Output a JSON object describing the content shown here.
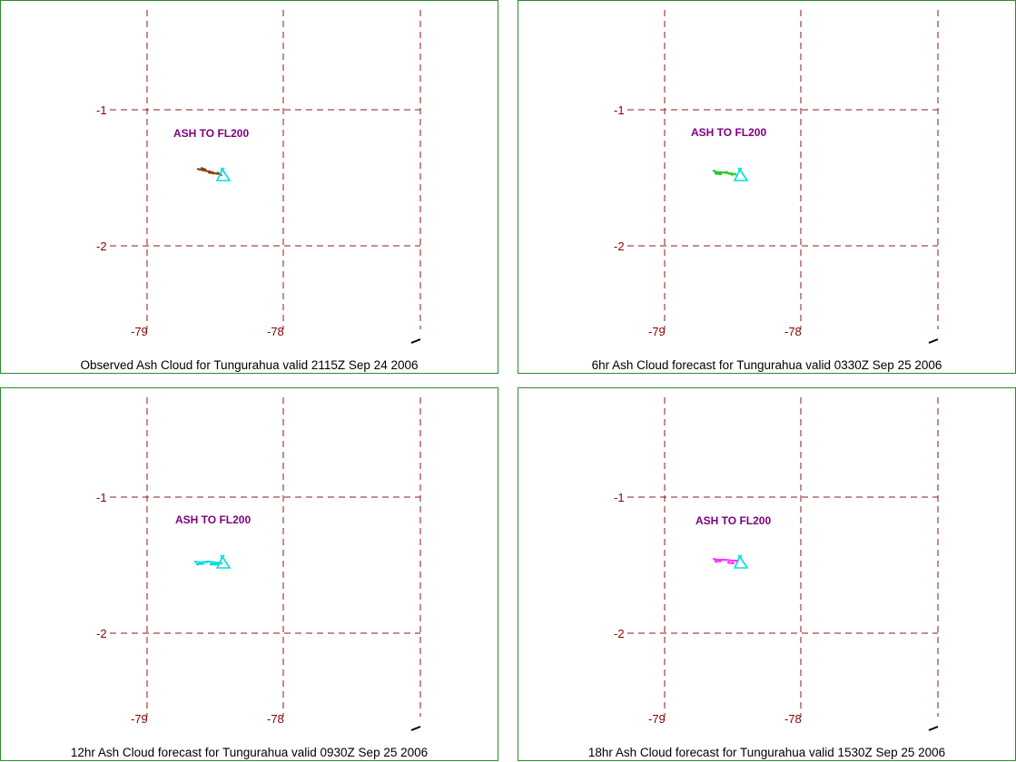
{
  "colors": {
    "grid": "#8b1a1a",
    "tick_text": "#8b0000",
    "label": "#800080",
    "volcano": "#00e0e0",
    "border": "#2e8b2e"
  },
  "panels": [
    {
      "caption": "Observed Ash Cloud for Tungurahua valid 2115Z Sep 24 2006",
      "ash_label": "ASH TO FL200",
      "cloud_color": "#8b4513",
      "cloud_icon": "ash-cloud-trail-icon"
    },
    {
      "caption": "6hr Ash Cloud forecast for Tungurahua valid 0330Z Sep 25 2006",
      "ash_label": "ASH TO FL200",
      "cloud_color": "#22cc22",
      "cloud_icon": "ash-cloud-trail-icon"
    },
    {
      "caption": "12hr Ash Cloud forecast for Tungurahua valid 0930Z Sep 25 2006",
      "ash_label": "ASH TO FL200",
      "cloud_color": "#00dddd",
      "cloud_icon": "ash-cloud-trail-icon"
    },
    {
      "caption": "18hr Ash Cloud forecast for Tungurahua valid 1530Z Sep 25 2006",
      "ash_label": "ASH TO FL200",
      "cloud_color": "#ff33ff",
      "cloud_icon": "ash-cloud-trail-icon"
    }
  ],
  "lat_ticks": [
    "-1",
    "-2"
  ],
  "lon_ticks": [
    "-79",
    "-78"
  ],
  "volcano_icon": "volcano-triangle-icon"
}
